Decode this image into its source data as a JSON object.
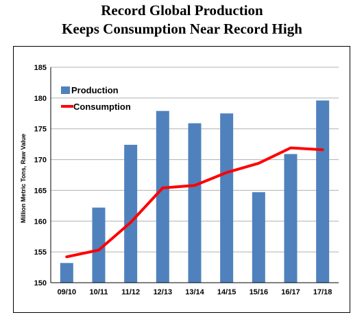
{
  "title_line1": "Record Global Production",
  "title_line2": "Keeps Consumption Near Record High",
  "colors": {
    "bar": "#4f81bd",
    "line": "#ff0000",
    "grid": "#b0b0b0"
  },
  "chart_data": {
    "type": "bar",
    "categories": [
      "09/10",
      "10/11",
      "11/12",
      "12/13",
      "13/14",
      "14/15",
      "15/16",
      "16/17",
      "17/18"
    ],
    "series": [
      {
        "name": "Production",
        "type": "bar",
        "values": [
          153.2,
          162.2,
          172.4,
          177.9,
          175.9,
          177.5,
          164.7,
          170.9,
          179.6
        ]
      },
      {
        "name": "Consumption",
        "type": "line",
        "values": [
          154.2,
          155.3,
          159.8,
          165.4,
          165.8,
          167.9,
          169.4,
          171.9,
          171.6
        ]
      }
    ],
    "ylabel": "Million Metric Tons, Raw Value",
    "ylim": [
      150,
      185
    ],
    "yticks": [
      150,
      155,
      160,
      165,
      170,
      175,
      180,
      185
    ],
    "grid": true,
    "legend": "top-left"
  }
}
